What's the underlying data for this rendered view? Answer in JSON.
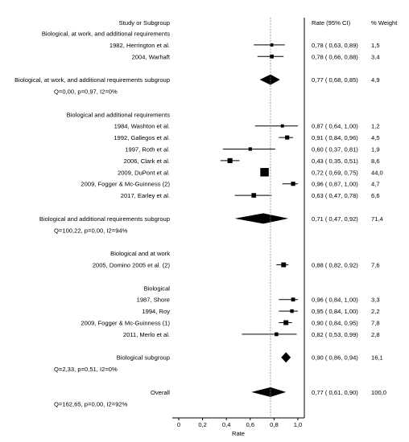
{
  "chart_data": {
    "type": "forest",
    "headers": {
      "label": "Study or Subgroup",
      "ci": "Rate (95% CI)",
      "weight": "% Weight"
    },
    "xlabel": "Rate",
    "xlim": [
      0,
      1.0
    ],
    "xticks": [
      "0",
      "0,2",
      "0,4",
      "0,6",
      "0,8",
      "1,0"
    ],
    "reference_line": 0.77,
    "rows": [
      {
        "kind": "group",
        "label": "Biological, at work, and additional requirements"
      },
      {
        "kind": "study",
        "label": "1982, Herrington et al.",
        "est": 0.78,
        "lo": 0.63,
        "hi": 0.89,
        "weight": 1.5,
        "ci_text": "0,78  (  0,63,  0,89)",
        "weight_text": "1,5"
      },
      {
        "kind": "study",
        "label": "2004, Warhaft",
        "est": 0.78,
        "lo": 0.66,
        "hi": 0.88,
        "weight": 3.4,
        "ci_text": "0,78  (  0,66,  0,88)",
        "weight_text": "3,4"
      },
      {
        "kind": "blank"
      },
      {
        "kind": "subtotal",
        "label": "Biological, at work, and additional requirements subgroup",
        "est": 0.77,
        "lo": 0.68,
        "hi": 0.85,
        "ci_text": "0,77  (  0,68,  0,85)",
        "weight_text": "4,9"
      },
      {
        "kind": "het",
        "label": "Q=0,00, p=0,97, I2=0%"
      },
      {
        "kind": "blank"
      },
      {
        "kind": "group",
        "label": "Biological and additional requirements"
      },
      {
        "kind": "study",
        "label": "1984, Washton et al.",
        "est": 0.87,
        "lo": 0.64,
        "hi": 1.0,
        "weight": 1.2,
        "ci_text": "0,87  (  0,64,  1,00)",
        "weight_text": "1,2"
      },
      {
        "kind": "study",
        "label": "1992, Gallegos et al.",
        "est": 0.91,
        "lo": 0.84,
        "hi": 0.96,
        "weight": 4.5,
        "ci_text": "0,91  (  0,84,  0,96)",
        "weight_text": "4,5"
      },
      {
        "kind": "study",
        "label": "1997, Roth et al.",
        "est": 0.6,
        "lo": 0.37,
        "hi": 0.81,
        "weight": 1.9,
        "ci_text": "0,60  (  0,37,  0,81)",
        "weight_text": "1,9"
      },
      {
        "kind": "study",
        "label": "2006, Clark et al.",
        "est": 0.43,
        "lo": 0.35,
        "hi": 0.51,
        "weight": 8.6,
        "ci_text": "0,43  (  0,35,  0,51)",
        "weight_text": "8,6"
      },
      {
        "kind": "study",
        "label": "2009, DuPont et al.",
        "est": 0.72,
        "lo": 0.69,
        "hi": 0.75,
        "weight": 44.0,
        "ci_text": "0,72  (  0,69,  0,75)",
        "weight_text": "44,0"
      },
      {
        "kind": "study",
        "label": "2009, Fogger & Mc-Guinness (2)",
        "est": 0.96,
        "lo": 0.87,
        "hi": 1.0,
        "weight": 4.7,
        "ci_text": "0,96  (  0,87,  1,00)",
        "weight_text": "4,7"
      },
      {
        "kind": "study",
        "label": "2017, Earley et al.",
        "est": 0.63,
        "lo": 0.47,
        "hi": 0.78,
        "weight": 6.6,
        "ci_text": "0,63  (  0,47,  0,78)",
        "weight_text": "6,6"
      },
      {
        "kind": "blank"
      },
      {
        "kind": "subtotal",
        "label": "Biological and additional requirements subgroup",
        "est": 0.71,
        "lo": 0.47,
        "hi": 0.92,
        "ci_text": "0,71  (  0,47,  0,92)",
        "weight_text": "71,4"
      },
      {
        "kind": "het",
        "label": "Q=100,22, p=0,00, I2=94%"
      },
      {
        "kind": "blank"
      },
      {
        "kind": "group",
        "label": "Biological and at work"
      },
      {
        "kind": "study",
        "label": "2005, Domino 2005 et al. (2)",
        "est": 0.88,
        "lo": 0.82,
        "hi": 0.92,
        "weight": 7.6,
        "ci_text": "0,88  (  0,82,  0,92)",
        "weight_text": "7,6"
      },
      {
        "kind": "blank"
      },
      {
        "kind": "group",
        "label": "Biological"
      },
      {
        "kind": "study",
        "label": "1987, Shore",
        "est": 0.96,
        "lo": 0.84,
        "hi": 1.0,
        "weight": 3.3,
        "ci_text": "0,96  (  0,84,  1,00)",
        "weight_text": "3,3"
      },
      {
        "kind": "study",
        "label": "1994, Roy",
        "est": 0.95,
        "lo": 0.84,
        "hi": 1.0,
        "weight": 2.2,
        "ci_text": "0,95  (  0,84,  1,00)",
        "weight_text": "2,2"
      },
      {
        "kind": "study",
        "label": "2009, Fogger & Mc-Guinness (1)",
        "est": 0.9,
        "lo": 0.84,
        "hi": 0.95,
        "weight": 7.8,
        "ci_text": "0,90  (  0,84,  0,95)",
        "weight_text": "7,8"
      },
      {
        "kind": "study",
        "label": "2011, Merlo et al.",
        "est": 0.82,
        "lo": 0.53,
        "hi": 0.99,
        "weight": 2.8,
        "ci_text": "0,82  (  0,53,  0,99)",
        "weight_text": "2,8"
      },
      {
        "kind": "blank"
      },
      {
        "kind": "subtotal",
        "label": "Biological subgroup",
        "est": 0.9,
        "lo": 0.86,
        "hi": 0.94,
        "ci_text": "0,90  (  0,86,  0,94)",
        "weight_text": "16,1"
      },
      {
        "kind": "het",
        "label": "Q=2,33, p=0,51, I2=0%"
      },
      {
        "kind": "blank"
      },
      {
        "kind": "overall",
        "label": "Overall",
        "est": 0.77,
        "lo": 0.61,
        "hi": 0.9,
        "ci_text": "0,77  (  0,61,  0,90)",
        "weight_text": "100,0"
      },
      {
        "kind": "het",
        "label": "Q=162,65, p=0,00, I2=92%"
      }
    ]
  }
}
